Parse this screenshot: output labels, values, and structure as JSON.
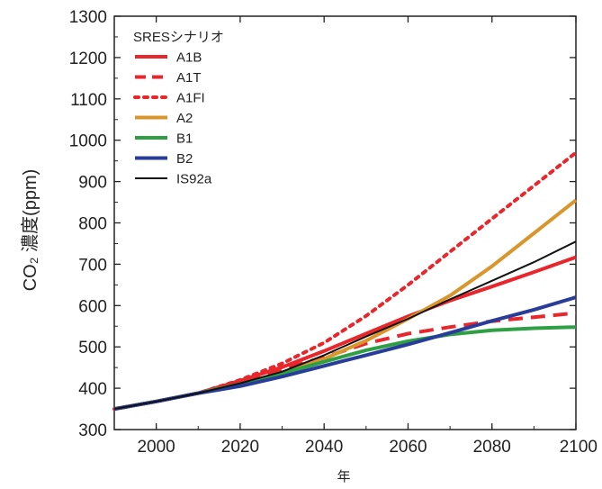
{
  "chart_data": {
    "type": "line",
    "title": "",
    "xlabel": "年",
    "ylabel": "CO₂ 濃度(ppm)",
    "xlim": [
      1990,
      2100
    ],
    "ylim": [
      300,
      1300
    ],
    "x_ticks": [
      "2000",
      "2020",
      "2040",
      "2060",
      "2080",
      "2100"
    ],
    "y_ticks": [
      "300",
      "400",
      "500",
      "600",
      "700",
      "800",
      "900",
      "1000",
      "1100",
      "1200",
      "1300"
    ],
    "grid": false,
    "legend": {
      "title": "SRESシナリオ",
      "placement": "top-left"
    },
    "x": [
      1990,
      2000,
      2010,
      2020,
      2030,
      2040,
      2050,
      2060,
      2070,
      2080,
      2090,
      2100
    ],
    "series": [
      {
        "name": "A1B",
        "color": "#e8262b",
        "dash": "solid",
        "values": [
          350,
          368,
          388,
          418,
          451,
          490,
          532,
          574,
          612,
          646,
          681,
          717
        ]
      },
      {
        "name": "A1T",
        "color": "#e8262b",
        "dash": "dashed",
        "values": [
          350,
          368,
          388,
          415,
          446,
          475,
          508,
          532,
          548,
          562,
          572,
          582
        ]
      },
      {
        "name": "A1FI",
        "color": "#e8262b",
        "dash": "dotted",
        "values": [
          350,
          368,
          388,
          420,
          460,
          510,
          575,
          650,
          730,
          810,
          890,
          970
        ]
      },
      {
        "name": "A2",
        "color": "#d8962c",
        "dash": "solid",
        "values": [
          350,
          368,
          388,
          410,
          438,
          471,
          515,
          568,
          624,
          695,
          775,
          855
        ]
      },
      {
        "name": "B1",
        "color": "#2ea043",
        "dash": "solid",
        "values": [
          350,
          368,
          388,
          410,
          436,
          464,
          492,
          514,
          530,
          540,
          545,
          548
        ]
      },
      {
        "name": "B2",
        "color": "#283c9a",
        "dash": "solid",
        "values": [
          350,
          368,
          388,
          405,
          428,
          454,
          480,
          506,
          534,
          563,
          590,
          620
        ]
      },
      {
        "name": "IS92a",
        "color": "#111111",
        "dash": "solid",
        "values": [
          350,
          368,
          388,
          412,
          440,
          480,
          525,
          568,
          615,
          660,
          705,
          755
        ]
      }
    ]
  }
}
